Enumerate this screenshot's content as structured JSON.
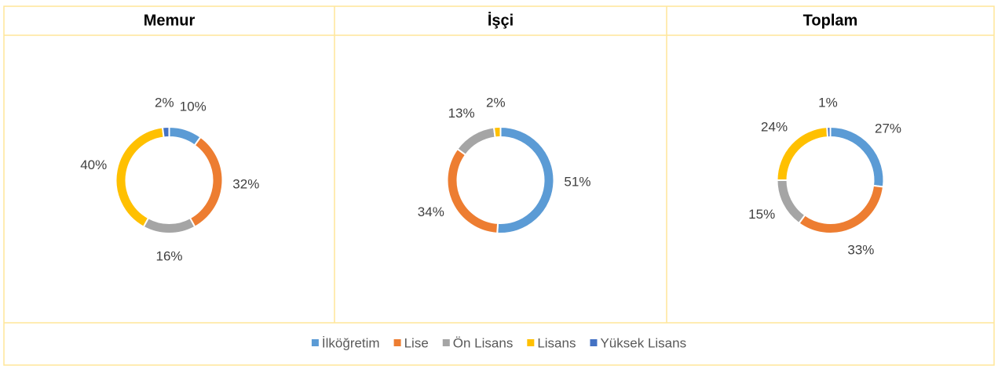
{
  "chart_data": [
    {
      "type": "donut",
      "title": "Memur",
      "values": [
        10,
        32,
        16,
        40,
        2
      ],
      "value_labels": [
        "10%",
        "32%",
        "16%",
        "40%",
        "2%"
      ]
    },
    {
      "type": "donut",
      "title": "İşçi",
      "values": [
        51,
        34,
        13,
        2,
        null
      ],
      "value_labels": [
        "51%",
        "34%",
        "13%",
        "2%",
        null
      ]
    },
    {
      "type": "donut",
      "title": "Toplam",
      "values": [
        27,
        33,
        15,
        24,
        1
      ],
      "value_labels": [
        "27%",
        "33%",
        "15%",
        "24%",
        "1%"
      ]
    }
  ],
  "legend": {
    "categories": [
      "İlköğretim",
      "Lise",
      "Ön Lisans",
      "Lisans",
      "Yüksek Lisans"
    ],
    "colors": [
      "#5b9bd5",
      "#ed7d31",
      "#a5a5a5",
      "#ffc000",
      "#4472c4"
    ]
  }
}
